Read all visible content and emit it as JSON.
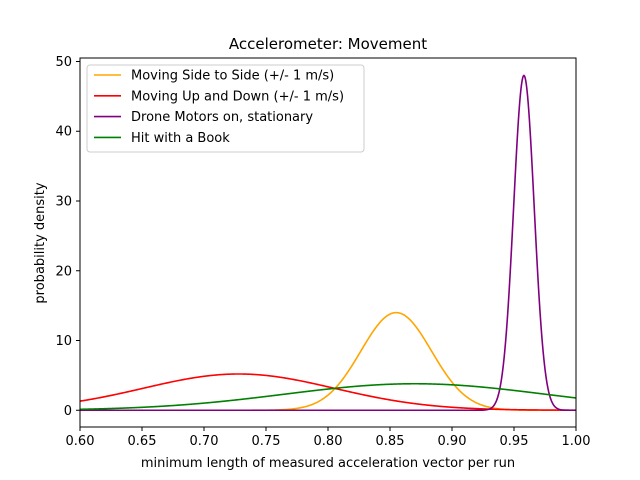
{
  "chart_data": {
    "type": "line",
    "title": "Accelerometer: Movement",
    "xlabel": "minimum length of measured acceleration vector per run",
    "ylabel": "probability density",
    "xlim": [
      0.6,
      1.0
    ],
    "ylim": [
      -2.4,
      50.5
    ],
    "x_ticks": [
      "0.60",
      "0.65",
      "0.70",
      "0.75",
      "0.80",
      "0.85",
      "0.90",
      "0.95",
      "1.00"
    ],
    "y_ticks": [
      "0",
      "10",
      "20",
      "30",
      "40",
      "50"
    ],
    "grid": false,
    "legend_position": "top-left",
    "series": [
      {
        "name": "Moving Side to Side (+/- 1 m/s)",
        "color": "#ffa500",
        "distribution": "normal",
        "mean": 0.855,
        "std": 0.0285,
        "peak_density": 14.0
      },
      {
        "name": "Moving Up and Down (+/- 1 m/s)",
        "color": "#ff0000",
        "distribution": "normal",
        "mean": 0.728,
        "std": 0.077,
        "peak_density": 5.2
      },
      {
        "name": "Drone Motors on, stationary",
        "color": "#800080",
        "distribution": "normal",
        "mean": 0.958,
        "std": 0.0083,
        "peak_density": 48.0
      },
      {
        "name": "Hit with a Book",
        "color": "#008000",
        "distribution": "normal",
        "mean": 0.87,
        "std": 0.105,
        "peak_density": 3.8
      }
    ]
  }
}
